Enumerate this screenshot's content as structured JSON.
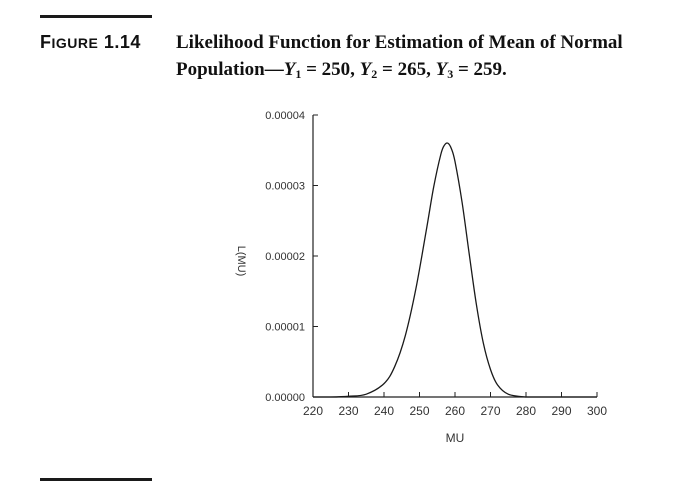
{
  "figure": {
    "label_prefix": "F",
    "label_small_caps": "IGURE",
    "label_number": "1.14",
    "title_line1": "Likelihood Function for Estimation of Mean of Normal",
    "title_line2_prefix": "Population—",
    "obs": [
      {
        "sym": "Y",
        "sub": "1",
        "text": " = 250, "
      },
      {
        "sym": "Y",
        "sub": "2",
        "text": " = 265, "
      },
      {
        "sym": "Y",
        "sub": "3",
        "text": " = 259."
      }
    ]
  },
  "chart_data": {
    "type": "line",
    "xlabel": "MU",
    "ylabel": "L(MU)",
    "xlim": [
      220,
      300
    ],
    "ylim": [
      0,
      4e-05
    ],
    "x_ticks": [
      220,
      230,
      240,
      250,
      260,
      270,
      280,
      290,
      300
    ],
    "y_ticks": [
      0,
      1e-05,
      2e-05,
      3e-05,
      4e-05
    ],
    "y_tick_labels": [
      "0.00000",
      "0.00001",
      "0.00002",
      "0.00003",
      "0.00004"
    ],
    "series": [
      {
        "x": [
          220,
          225,
          230,
          235,
          240,
          243,
          246,
          249,
          252,
          254,
          256,
          257,
          258,
          259,
          260,
          262,
          264,
          266,
          268,
          270,
          272,
          275,
          280,
          285,
          290,
          295,
          300
        ],
        "y": [
          0.0,
          0.0,
          1e-07,
          4e-07,
          1.9e-06,
          4.3e-06,
          8.7e-06,
          1.54e-05,
          2.39e-05,
          2.98e-05,
          3.44e-05,
          3.57e-05,
          3.6e-05,
          3.52e-05,
          3.34e-05,
          2.76e-05,
          2.03e-05,
          1.32e-05,
          7.6e-06,
          3.9e-06,
          1.7e-06,
          4e-07,
          0.0,
          0.0,
          0.0,
          0.0,
          0.0
        ]
      }
    ],
    "grid": false,
    "legend": "none"
  }
}
